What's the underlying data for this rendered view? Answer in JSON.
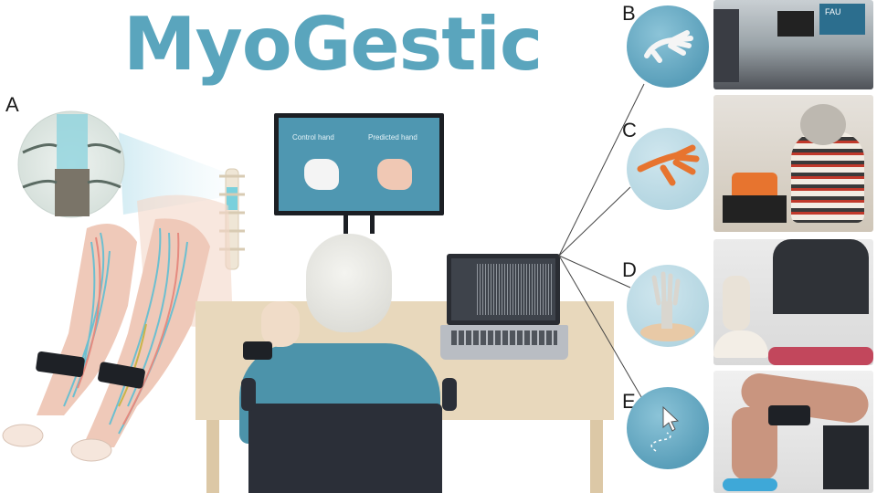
{
  "title": "MyoGestic",
  "panels": {
    "a": "A",
    "b": "B",
    "c": "C",
    "d": "D",
    "e": "E"
  },
  "monitor": {
    "control_label": "Control hand",
    "predicted_label": "Predicted hand"
  },
  "photos": {
    "b_sign": "FAU"
  },
  "colors": {
    "brand": "#5aa5bd",
    "circle": "#5a9fba",
    "desk": "#e8d8bc",
    "shirt": "#4c93aa",
    "chair": "#2b2f38"
  }
}
